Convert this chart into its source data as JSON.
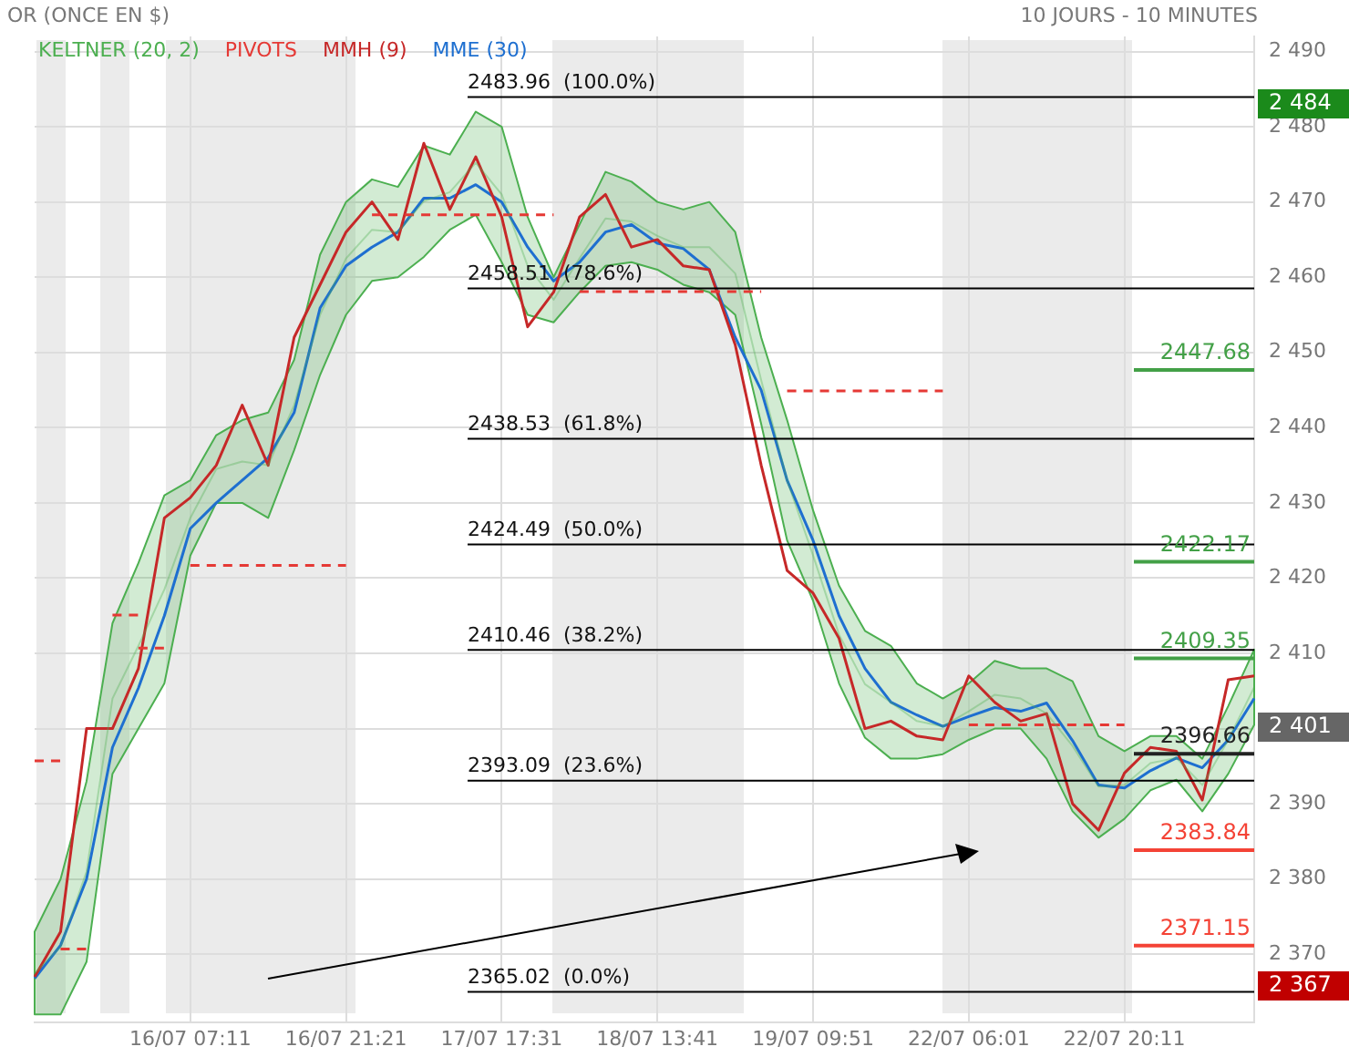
{
  "chart_data": {
    "type": "line",
    "title": "OR (ONCE EN $)",
    "annotations": [
      "10 JOURS - 10 MINUTES",
      "2 484",
      "2 367",
      "2 401"
    ],
    "categories": [
      null,
      null,
      null,
      null,
      null,
      null,
      "16/07 07:11",
      null,
      null,
      null,
      null,
      null,
      "16/07 21:21",
      null,
      null,
      null,
      null,
      null,
      "17/07 17:31",
      null,
      null,
      null,
      null,
      null,
      "18/07 13:41",
      null,
      null,
      null,
      null,
      null,
      "19/07 09:51",
      null,
      null,
      null,
      null,
      null,
      "22/07 06:01",
      null,
      null,
      null,
      null,
      null,
      "22/07 20:11",
      null,
      null,
      null,
      null,
      null
    ],
    "ylim": [
      2361,
      2492
    ],
    "yticks": [
      {
        "value": 2370,
        "label": "2 370"
      },
      {
        "value": 2380,
        "label": "2 380"
      },
      {
        "value": 2390,
        "label": "2 390"
      },
      {
        "value": 2400,
        "label": null
      },
      {
        "value": 2410,
        "label": "2 410"
      },
      {
        "value": 2420,
        "label": "2 420"
      },
      {
        "value": 2430,
        "label": "2 430"
      },
      {
        "value": 2440,
        "label": "2 440"
      },
      {
        "value": 2450,
        "label": "2 450"
      },
      {
        "value": 2460,
        "label": "2 460"
      },
      {
        "value": 2470,
        "label": "2 470"
      },
      {
        "value": 2480,
        "label": "2 480"
      },
      {
        "value": 2490,
        "label": "2 490"
      }
    ],
    "grid": true,
    "legend": "top left",
    "marker": "none",
    "series": [
      {
        "name": "KELTNER (20, 2)",
        "color": "#4caf50",
        "values": [
          2367.5,
          2371,
          2381,
          2404,
          2411,
          2418.5,
          2428,
          2434.5,
          2435.5,
          2435,
          2443,
          2455,
          2462.5,
          2466.3,
          2466,
          2470.1,
          2471.3,
          2475.2,
          2471,
          2461.5,
          2457,
          2462.5,
          2467.8,
          2467.4,
          2465.5,
          2464,
          2464,
          2460.5,
          2446.3,
          2433,
          2423,
          2412.5,
          2405.9,
          2403.5,
          2401,
          2400.3,
          2402.3,
          2404.5,
          2404,
          2402,
          2397.7,
          2392.3,
          2392.5,
          2395.4,
          2396.1,
          2392.5,
          2398.5,
          2405.5
        ],
        "lower": [
          2362,
          2362,
          2369,
          2394,
          2400,
          2406,
          2423,
          2430,
          2430,
          2428,
          2437,
          2447,
          2455,
          2459.5,
          2460,
          2462.7,
          2466.3,
          2468.3,
          2462,
          2455,
          2454,
          2458,
          2461.5,
          2462,
          2461,
          2459,
          2458,
          2455,
          2440.5,
          2425,
          2417,
          2406,
          2398.8,
          2396,
          2396,
          2396.6,
          2398.5,
          2400,
          2400,
          2396,
          2389,
          2385.5,
          2388,
          2391.8,
          2393.2,
          2389,
          2394,
          2400.5
        ],
        "upper": [
          2373,
          2380,
          2393,
          2414,
          2422,
          2431,
          2433,
          2439,
          2441,
          2442,
          2449,
          2463,
          2470,
          2473,
          2472,
          2477.5,
          2476.3,
          2482,
          2480,
          2468,
          2460,
          2467,
          2474,
          2472.7,
          2470,
          2469,
          2470,
          2466,
          2452,
          2441,
          2429,
          2419,
          2413,
          2411,
          2406,
          2404,
          2406,
          2409,
          2408,
          2408,
          2406.3,
          2399,
          2397,
          2399,
          2399,
          2396,
          2403,
          2410.5
        ]
      },
      {
        "name": "PIVOTS",
        "color": "#e53935",
        "line_style": "dashed",
        "values": [
          2395.7,
          2395.7,
          null,
          2415.1,
          2415.1,
          null,
          2421.7,
          2421.7,
          2421.7,
          2421.7,
          2421.7,
          2421.7,
          2421.7,
          2468.3,
          2468.3,
          2468.3,
          2468.3,
          2468.3,
          2468.3,
          2468.3,
          2468.3,
          2458.1,
          2458.1,
          2458.1,
          2458.1,
          2458.1,
          2458.1,
          2458.1,
          2458.1,
          2444.9,
          2444.9,
          2444.9,
          2444.9,
          2444.9,
          2444.9,
          2444.9,
          2400.5,
          2400.5,
          2400.5,
          2400.5,
          2400.5,
          2400.5,
          2400.5,
          null,
          null,
          null,
          null,
          null
        ]
      },
      {
        "color": "#e53935",
        "line_style": "dashed",
        "values": [
          null,
          2370.7,
          2370.7,
          null,
          2410.7,
          2410.7,
          null,
          null,
          null,
          null,
          null,
          null,
          null,
          null,
          null,
          null,
          null,
          null,
          null,
          null,
          null,
          null,
          null,
          null,
          null,
          null,
          null,
          null,
          null,
          null,
          null,
          null,
          null,
          null,
          null,
          null,
          null,
          null,
          null,
          null,
          null,
          null,
          null,
          null,
          null,
          null,
          null,
          null
        ]
      },
      {
        "name": "MMH (9)",
        "color": "#c62828",
        "values": [
          2367,
          2373,
          2400,
          2400,
          2408,
          2428,
          2430.7,
          2435,
          2443,
          2435,
          2452,
          2459,
          2466,
          2470,
          2465,
          2477.8,
          2469,
          2476,
          2468,
          2453.4,
          2458,
          2468,
          2471,
          2464,
          2465,
          2461.5,
          2461,
          2451,
          2435,
          2421,
          2418,
          2412,
          2400,
          2401,
          2399,
          2398.5,
          2407,
          2403.5,
          2401,
          2402,
          2390,
          2386.5,
          2394.1,
          2397.5,
          2397,
          2390.5,
          2406.5,
          2407
        ]
      },
      {
        "name": "MME (30)",
        "color": "#1e6fd0",
        "values": [
          2366.8,
          2371.2,
          2380,
          2397.5,
          2405.4,
          2415,
          2426.6,
          2430,
          2433,
          2436,
          2442,
          2455.9,
          2461.5,
          2464,
          2466,
          2470.5,
          2470.5,
          2472.3,
          2470,
          2464,
          2459.5,
          2462,
          2466,
          2467,
          2464.5,
          2463.8,
          2461,
          2452,
          2445,
          2433,
          2425,
          2415,
          2408,
          2403.5,
          2401.8,
          2400.3,
          2401.6,
          2402.8,
          2402.3,
          2403.4,
          2398.4,
          2392.5,
          2392.1,
          2394.4,
          2396.1,
          2394.8,
          2398.5,
          2404
        ]
      }
    ],
    "ref_lines": [
      {
        "axis": "y",
        "value": 2483.96,
        "label": "2483.96  (100.0%)"
      },
      {
        "axis": "y",
        "value": 2458.51,
        "label": "2458.51  (78.6%)"
      },
      {
        "axis": "y",
        "value": 2438.53,
        "label": "2438.53  (61.8%)"
      },
      {
        "axis": "y",
        "value": 2424.49,
        "label": "2424.49  (50.0%)"
      },
      {
        "axis": "y",
        "value": 2410.46,
        "label": "2410.46  (38.2%)"
      },
      {
        "axis": "y",
        "value": 2393.09,
        "label": "2393.09  (23.6%)"
      },
      {
        "axis": "y",
        "value": 2365.02,
        "label": "2365.02  (0.0%)"
      },
      {
        "axis": "y",
        "value": 2447.68,
        "label": "2447.68",
        "color": "#43a047"
      },
      {
        "axis": "y",
        "value": 2422.17,
        "label": "2422.17",
        "color": "#43a047"
      },
      {
        "axis": "y",
        "value": 2409.35,
        "label": "2409.35",
        "color": "#43a047"
      },
      {
        "axis": "y",
        "value": 2396.66,
        "label": "2396.66",
        "color": "#222222"
      },
      {
        "axis": "y",
        "value": 2383.84,
        "label": "2383.84",
        "color": "#f44336"
      },
      {
        "axis": "y",
        "value": 2371.15,
        "label": "2371.15",
        "color": "#f44336"
      }
    ]
  }
}
